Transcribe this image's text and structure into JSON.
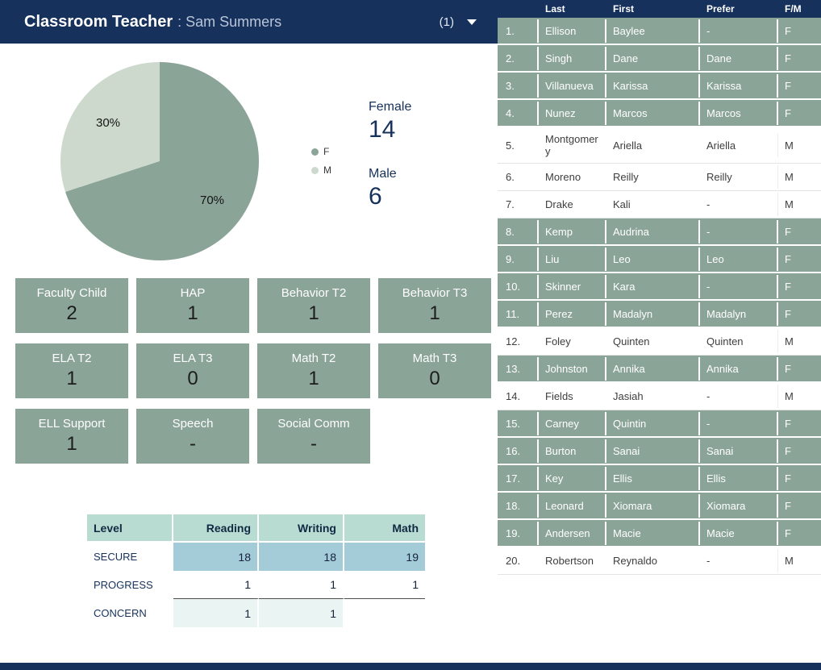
{
  "header": {
    "title": "Classroom Teacher",
    "subtitle": ": Sam Summers",
    "count": "(1)"
  },
  "pie": {
    "label_light": "30%",
    "label_dark": "70%",
    "legend_f": "F",
    "legend_m": "M"
  },
  "gender_summary": {
    "female_label": "Female",
    "female_value": "14",
    "male_label": "Male",
    "male_value": "6"
  },
  "stat_cards": [
    {
      "label": "Faculty Child",
      "value": "2"
    },
    {
      "label": "HAP",
      "value": "1"
    },
    {
      "label": "Behavior T2",
      "value": "1"
    },
    {
      "label": "Behavior T3",
      "value": "1"
    },
    {
      "label": "ELA T2",
      "value": "1"
    },
    {
      "label": "ELA T3",
      "value": "0"
    },
    {
      "label": "Math T2",
      "value": "1"
    },
    {
      "label": "Math T3",
      "value": "0"
    },
    {
      "label": "ELL Support",
      "value": "1"
    },
    {
      "label": "Speech",
      "value": "-"
    },
    {
      "label": "Social Comm",
      "value": "-"
    }
  ],
  "level_table": {
    "headers": [
      "Level",
      "Reading",
      "Writing",
      "Math"
    ],
    "rows": [
      {
        "label": "SECURE",
        "values": [
          "18",
          "18",
          "19"
        ]
      },
      {
        "label": "PROGRESS",
        "values": [
          "1",
          "1",
          "1"
        ]
      },
      {
        "label": "CONCERN",
        "values": [
          "1",
          "1",
          ""
        ]
      }
    ]
  },
  "students": {
    "headers": [
      "Last",
      "First",
      "Prefer",
      "F/M"
    ],
    "rows": [
      {
        "num": "1.",
        "last": "Ellison",
        "first": "Baylee",
        "prefer": "-",
        "fm": "F"
      },
      {
        "num": "2.",
        "last": "Singh",
        "first": "Dane",
        "prefer": "Dane",
        "fm": "F"
      },
      {
        "num": "3.",
        "last": "Villanueva",
        "first": "Karissa",
        "prefer": "Karissa",
        "fm": "F"
      },
      {
        "num": "4.",
        "last": "Nunez",
        "first": "Marcos",
        "prefer": "Marcos",
        "fm": "F"
      },
      {
        "num": "5.",
        "last": "Montgomery",
        "first": "Ariella",
        "prefer": "Ariella",
        "fm": "M"
      },
      {
        "num": "6.",
        "last": "Moreno",
        "first": "Reilly",
        "prefer": "Reilly",
        "fm": "M"
      },
      {
        "num": "7.",
        "last": "Drake",
        "first": "Kali",
        "prefer": "-",
        "fm": "M"
      },
      {
        "num": "8.",
        "last": "Kemp",
        "first": "Audrina",
        "prefer": "-",
        "fm": "F"
      },
      {
        "num": "9.",
        "last": "Liu",
        "first": "Leo",
        "prefer": "Leo",
        "fm": "F"
      },
      {
        "num": "10.",
        "last": "Skinner",
        "first": "Kara",
        "prefer": "-",
        "fm": "F"
      },
      {
        "num": "11.",
        "last": "Perez",
        "first": "Madalyn",
        "prefer": "Madalyn",
        "fm": "F"
      },
      {
        "num": "12.",
        "last": "Foley",
        "first": "Quinten",
        "prefer": "Quinten",
        "fm": "M"
      },
      {
        "num": "13.",
        "last": "Johnston",
        "first": "Annika",
        "prefer": "Annika",
        "fm": "F"
      },
      {
        "num": "14.",
        "last": "Fields",
        "first": "Jasiah",
        "prefer": "-",
        "fm": "M"
      },
      {
        "num": "15.",
        "last": "Carney",
        "first": "Quintin",
        "prefer": "-",
        "fm": "F"
      },
      {
        "num": "16.",
        "last": "Burton",
        "first": "Sanai",
        "prefer": "Sanai",
        "fm": "F"
      },
      {
        "num": "17.",
        "last": "Key",
        "first": "Ellis",
        "prefer": "Ellis",
        "fm": "F"
      },
      {
        "num": "18.",
        "last": "Leonard",
        "first": "Xiomara",
        "prefer": "Xiomara",
        "fm": "F"
      },
      {
        "num": "19.",
        "last": "Andersen",
        "first": "Macie",
        "prefer": "Macie",
        "fm": "F"
      },
      {
        "num": "20.",
        "last": "Robertson",
        "first": "Reynaldo",
        "prefer": "-",
        "fm": "M"
      }
    ]
  },
  "chart_data": [
    {
      "type": "pie",
      "title": "Gender distribution",
      "labels": [
        "F",
        "M"
      ],
      "values": [
        70,
        30
      ],
      "counts": {
        "Female": 14,
        "Male": 6
      },
      "annotations": [
        "70%",
        "30%"
      ],
      "colors": [
        "#8ba498",
        "#ccd9cc"
      ],
      "legend_position": "right"
    },
    {
      "type": "table",
      "columns": [
        "Level",
        "Reading",
        "Writing",
        "Math"
      ],
      "rows": [
        [
          "SECURE",
          18,
          18,
          19
        ],
        [
          "PROGRESS",
          1,
          1,
          1
        ],
        [
          "CONCERN",
          1,
          1,
          null
        ]
      ]
    }
  ],
  "colors": {
    "navy": "#16325c",
    "sage": "#8ba498",
    "sage_light": "#ccd9cc",
    "mint_header": "#b9dcd2",
    "secure_blue": "#a3cbd8",
    "concern_light": "#e9f4f3"
  }
}
